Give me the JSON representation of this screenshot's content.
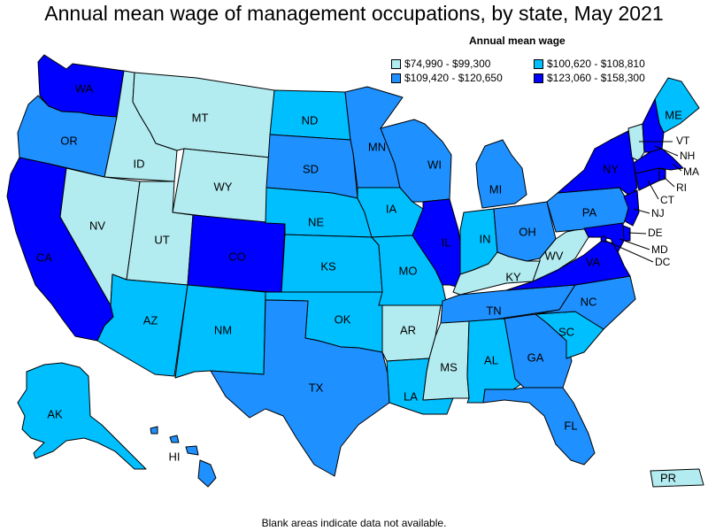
{
  "title": "Annual mean wage of management occupations, by state, May 2021",
  "legend": {
    "title": "Annual mean wage",
    "items": [
      {
        "label": "$74,990 - $99,300",
        "color": "#b2ebf0"
      },
      {
        "label": "$100,620 - $108,810",
        "color": "#00bfff"
      },
      {
        "label": "$109,420 - $120,650",
        "color": "#1e90ff"
      },
      {
        "label": "$123,060 - $158,300",
        "color": "#0000ff"
      }
    ]
  },
  "footer": "Blank areas indicate data not available.",
  "states": {
    "WA": {
      "label": "WA",
      "tier": 3
    },
    "OR": {
      "label": "OR",
      "tier": 2
    },
    "CA": {
      "label": "CA",
      "tier": 3
    },
    "ID": {
      "label": "ID",
      "tier": 0
    },
    "NV": {
      "label": "NV",
      "tier": 0
    },
    "MT": {
      "label": "MT",
      "tier": 0
    },
    "WY": {
      "label": "WY",
      "tier": 0
    },
    "UT": {
      "label": "UT",
      "tier": 0
    },
    "AZ": {
      "label": "AZ",
      "tier": 1
    },
    "CO": {
      "label": "CO",
      "tier": 3
    },
    "NM": {
      "label": "NM",
      "tier": 1
    },
    "ND": {
      "label": "ND",
      "tier": 1
    },
    "SD": {
      "label": "SD",
      "tier": 2
    },
    "NE": {
      "label": "NE",
      "tier": 1
    },
    "KS": {
      "label": "KS",
      "tier": 1
    },
    "OK": {
      "label": "OK",
      "tier": 1
    },
    "TX": {
      "label": "TX",
      "tier": 2
    },
    "MN": {
      "label": "MN",
      "tier": 2
    },
    "IA": {
      "label": "IA",
      "tier": 1
    },
    "MO": {
      "label": "MO",
      "tier": 1
    },
    "AR": {
      "label": "AR",
      "tier": 0
    },
    "LA": {
      "label": "LA",
      "tier": 1
    },
    "WI": {
      "label": "WI",
      "tier": 2
    },
    "IL": {
      "label": "IL",
      "tier": 3
    },
    "MI": {
      "label": "MI",
      "tier": 2
    },
    "IN": {
      "label": "IN",
      "tier": 1
    },
    "OH": {
      "label": "OH",
      "tier": 2
    },
    "KY": {
      "label": "KY",
      "tier": 0
    },
    "TN": {
      "label": "TN",
      "tier": 2
    },
    "MS": {
      "label": "MS",
      "tier": 0
    },
    "AL": {
      "label": "AL",
      "tier": 1
    },
    "GA": {
      "label": "GA",
      "tier": 2
    },
    "FL": {
      "label": "FL",
      "tier": 2
    },
    "SC": {
      "label": "SC",
      "tier": 1
    },
    "NC": {
      "label": "NC",
      "tier": 2
    },
    "VA": {
      "label": "VA",
      "tier": 3
    },
    "WV": {
      "label": "WV",
      "tier": 0
    },
    "PA": {
      "label": "PA",
      "tier": 2
    },
    "NY": {
      "label": "NY",
      "tier": 3
    },
    "ME": {
      "label": "ME",
      "tier": 1
    },
    "VT": {
      "label": "VT",
      "tier": 0
    },
    "NH": {
      "label": "NH",
      "tier": 3
    },
    "MA": {
      "label": "MA",
      "tier": 3
    },
    "RI": {
      "label": "RI",
      "tier": 3
    },
    "CT": {
      "label": "CT",
      "tier": 3
    },
    "NJ": {
      "label": "NJ",
      "tier": 3
    },
    "DE": {
      "label": "DE",
      "tier": 3
    },
    "MD": {
      "label": "MD",
      "tier": 3
    },
    "DC": {
      "label": "DC",
      "tier": 3
    },
    "AK": {
      "label": "AK",
      "tier": 1
    },
    "HI": {
      "label": "HI",
      "tier": 2
    },
    "PR": {
      "label": "PR",
      "tier": 0
    }
  }
}
